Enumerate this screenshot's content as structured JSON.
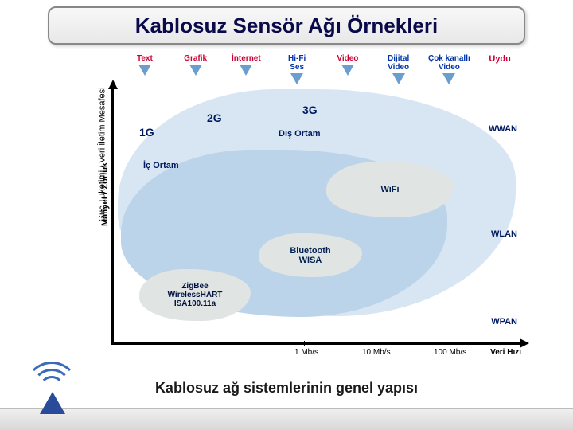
{
  "title": "Kablosuz Sensör Ağı Örnekleri",
  "caption": "Kablosuz ağ sistemlerinin genel yapısı",
  "categories": [
    {
      "label": "Text",
      "color": "#cc0033"
    },
    {
      "label": "Grafik",
      "color": "#cc0033"
    },
    {
      "label": "İnternet",
      "color": "#cc0033"
    },
    {
      "label": "Hi-Fi\nSes",
      "color": "#0033aa"
    },
    {
      "label": "Video",
      "color": "#cc0033"
    },
    {
      "label": "Dijital\nVideo",
      "color": "#0033aa"
    },
    {
      "label": "Çok kanallı\nVideo",
      "color": "#0033aa"
    },
    {
      "label": "Uydu",
      "color": "#cc0033"
    }
  ],
  "y_axis": {
    "label1": "Güç Tüketimi / Veri İletim Mesafesi",
    "label2": "Maliyet / Zorluk"
  },
  "x_axis": {
    "label": "Veri Hızı",
    "ticks": [
      "1 Mb/s",
      "10 Mb/s",
      "100 Mb/s"
    ]
  },
  "generations": {
    "g1": "1G",
    "g2": "2G",
    "g3": "3G"
  },
  "regions": {
    "outer_label": "Dış Ortam",
    "inner_label": "İç Ortam",
    "outer_color": "#d8e6f3",
    "inner_color": "#bcd4ea"
  },
  "clouds": {
    "wifi": "WiFi",
    "bluetooth": "Bluetooth\nWISA",
    "zigbee": "ZigBee\nWirelessHART\nISA100.11a"
  },
  "network_types": {
    "wwan": "WWAN",
    "wlan": "WLAN",
    "wpan": "WPAN"
  },
  "colors": {
    "title_text": "#0a0a4a",
    "accent_blue": "#2a4a9a",
    "cloud_bg": "#e0e4e3",
    "arrow_fill": "#6a9ecf"
  }
}
